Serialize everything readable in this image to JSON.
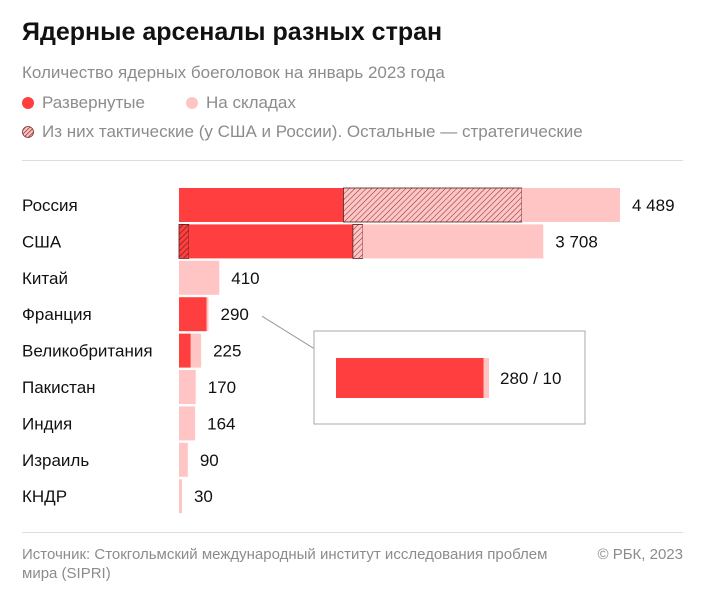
{
  "title": "Ядерные арсеналы разных стран",
  "subtitle": "Количество ядерных боеголовок на январь 2023 года",
  "legend": {
    "deployed": "Развернутые",
    "stored": "На складах",
    "tactical": "Из них тактические (у США и России). Остальные — стратегические"
  },
  "colors": {
    "deployed": "#ff3f3f",
    "stored": "#ffc5c5",
    "hatch": "#7a2a2a"
  },
  "chart_data": {
    "type": "bar",
    "orientation": "horizontal",
    "stacked": true,
    "categories": [
      "Россия",
      "США",
      "Китай",
      "Франция",
      "Великобритания",
      "Пакистан",
      "Индия",
      "Израиль",
      "КНДР"
    ],
    "series": [
      {
        "key": "deployed_tactical",
        "values": [
          0,
          100,
          0,
          0,
          0,
          0,
          0,
          0,
          0
        ]
      },
      {
        "key": "deployed_strategic",
        "values": [
          1674,
          1670,
          0,
          280,
          120,
          0,
          0,
          0,
          0
        ]
      },
      {
        "key": "stored_tactical",
        "values": [
          1816,
          100,
          0,
          0,
          0,
          0,
          0,
          0,
          0
        ]
      },
      {
        "key": "stored_strategic",
        "values": [
          999,
          1838,
          410,
          10,
          105,
          170,
          164,
          90,
          30
        ]
      }
    ],
    "totals": [
      "4 489",
      "3 708",
      "410",
      "290",
      "225",
      "170",
      "164",
      "90",
      "30"
    ],
    "inset": {
      "category": "Франция",
      "label": "280 / 10",
      "values": [
        280,
        10
      ]
    }
  },
  "footer": {
    "source": "Источник: Стокгольмский международный институт исследования проблем мира (SIPRI)",
    "copyright": "© РБК, 2023"
  }
}
